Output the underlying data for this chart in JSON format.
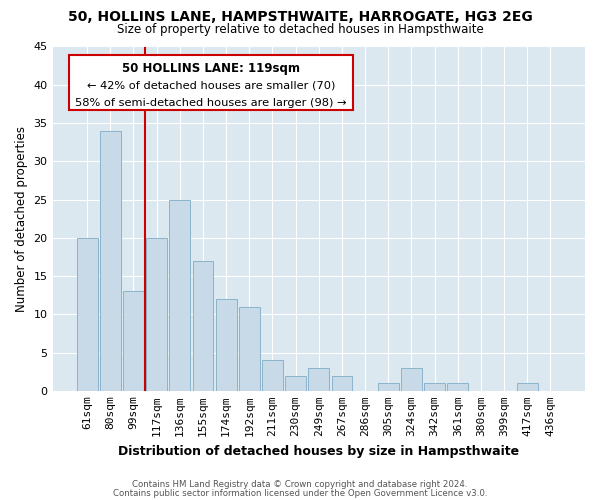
{
  "title": "50, HOLLINS LANE, HAMPSTHWAITE, HARROGATE, HG3 2EG",
  "subtitle": "Size of property relative to detached houses in Hampsthwaite",
  "xlabel": "Distribution of detached houses by size in Hampsthwaite",
  "ylabel": "Number of detached properties",
  "bar_labels": [
    "61sqm",
    "80sqm",
    "99sqm",
    "117sqm",
    "136sqm",
    "155sqm",
    "174sqm",
    "192sqm",
    "211sqm",
    "230sqm",
    "249sqm",
    "267sqm",
    "286sqm",
    "305sqm",
    "324sqm",
    "342sqm",
    "361sqm",
    "380sqm",
    "399sqm",
    "417sqm",
    "436sqm"
  ],
  "bar_values": [
    20,
    34,
    13,
    20,
    25,
    17,
    12,
    11,
    4,
    2,
    3,
    2,
    0,
    1,
    3,
    1,
    1,
    0,
    0,
    1,
    0
  ],
  "bar_color": "#c8d9e8",
  "bar_edge_color": "#8ab4cc",
  "highlight_line_index": 3,
  "highlight_line_color": "#cc0000",
  "ylim": [
    0,
    45
  ],
  "yticks": [
    0,
    5,
    10,
    15,
    20,
    25,
    30,
    35,
    40,
    45
  ],
  "annotation_title": "50 HOLLINS LANE: 119sqm",
  "annotation_line1": "← 42% of detached houses are smaller (70)",
  "annotation_line2": "58% of semi-detached houses are larger (98) →",
  "annotation_box_facecolor": "#ffffff",
  "annotation_box_edgecolor": "#cc0000",
  "bg_color": "#dce8f0",
  "footer_line1": "Contains HM Land Registry data © Crown copyright and database right 2024.",
  "footer_line2": "Contains public sector information licensed under the Open Government Licence v3.0."
}
